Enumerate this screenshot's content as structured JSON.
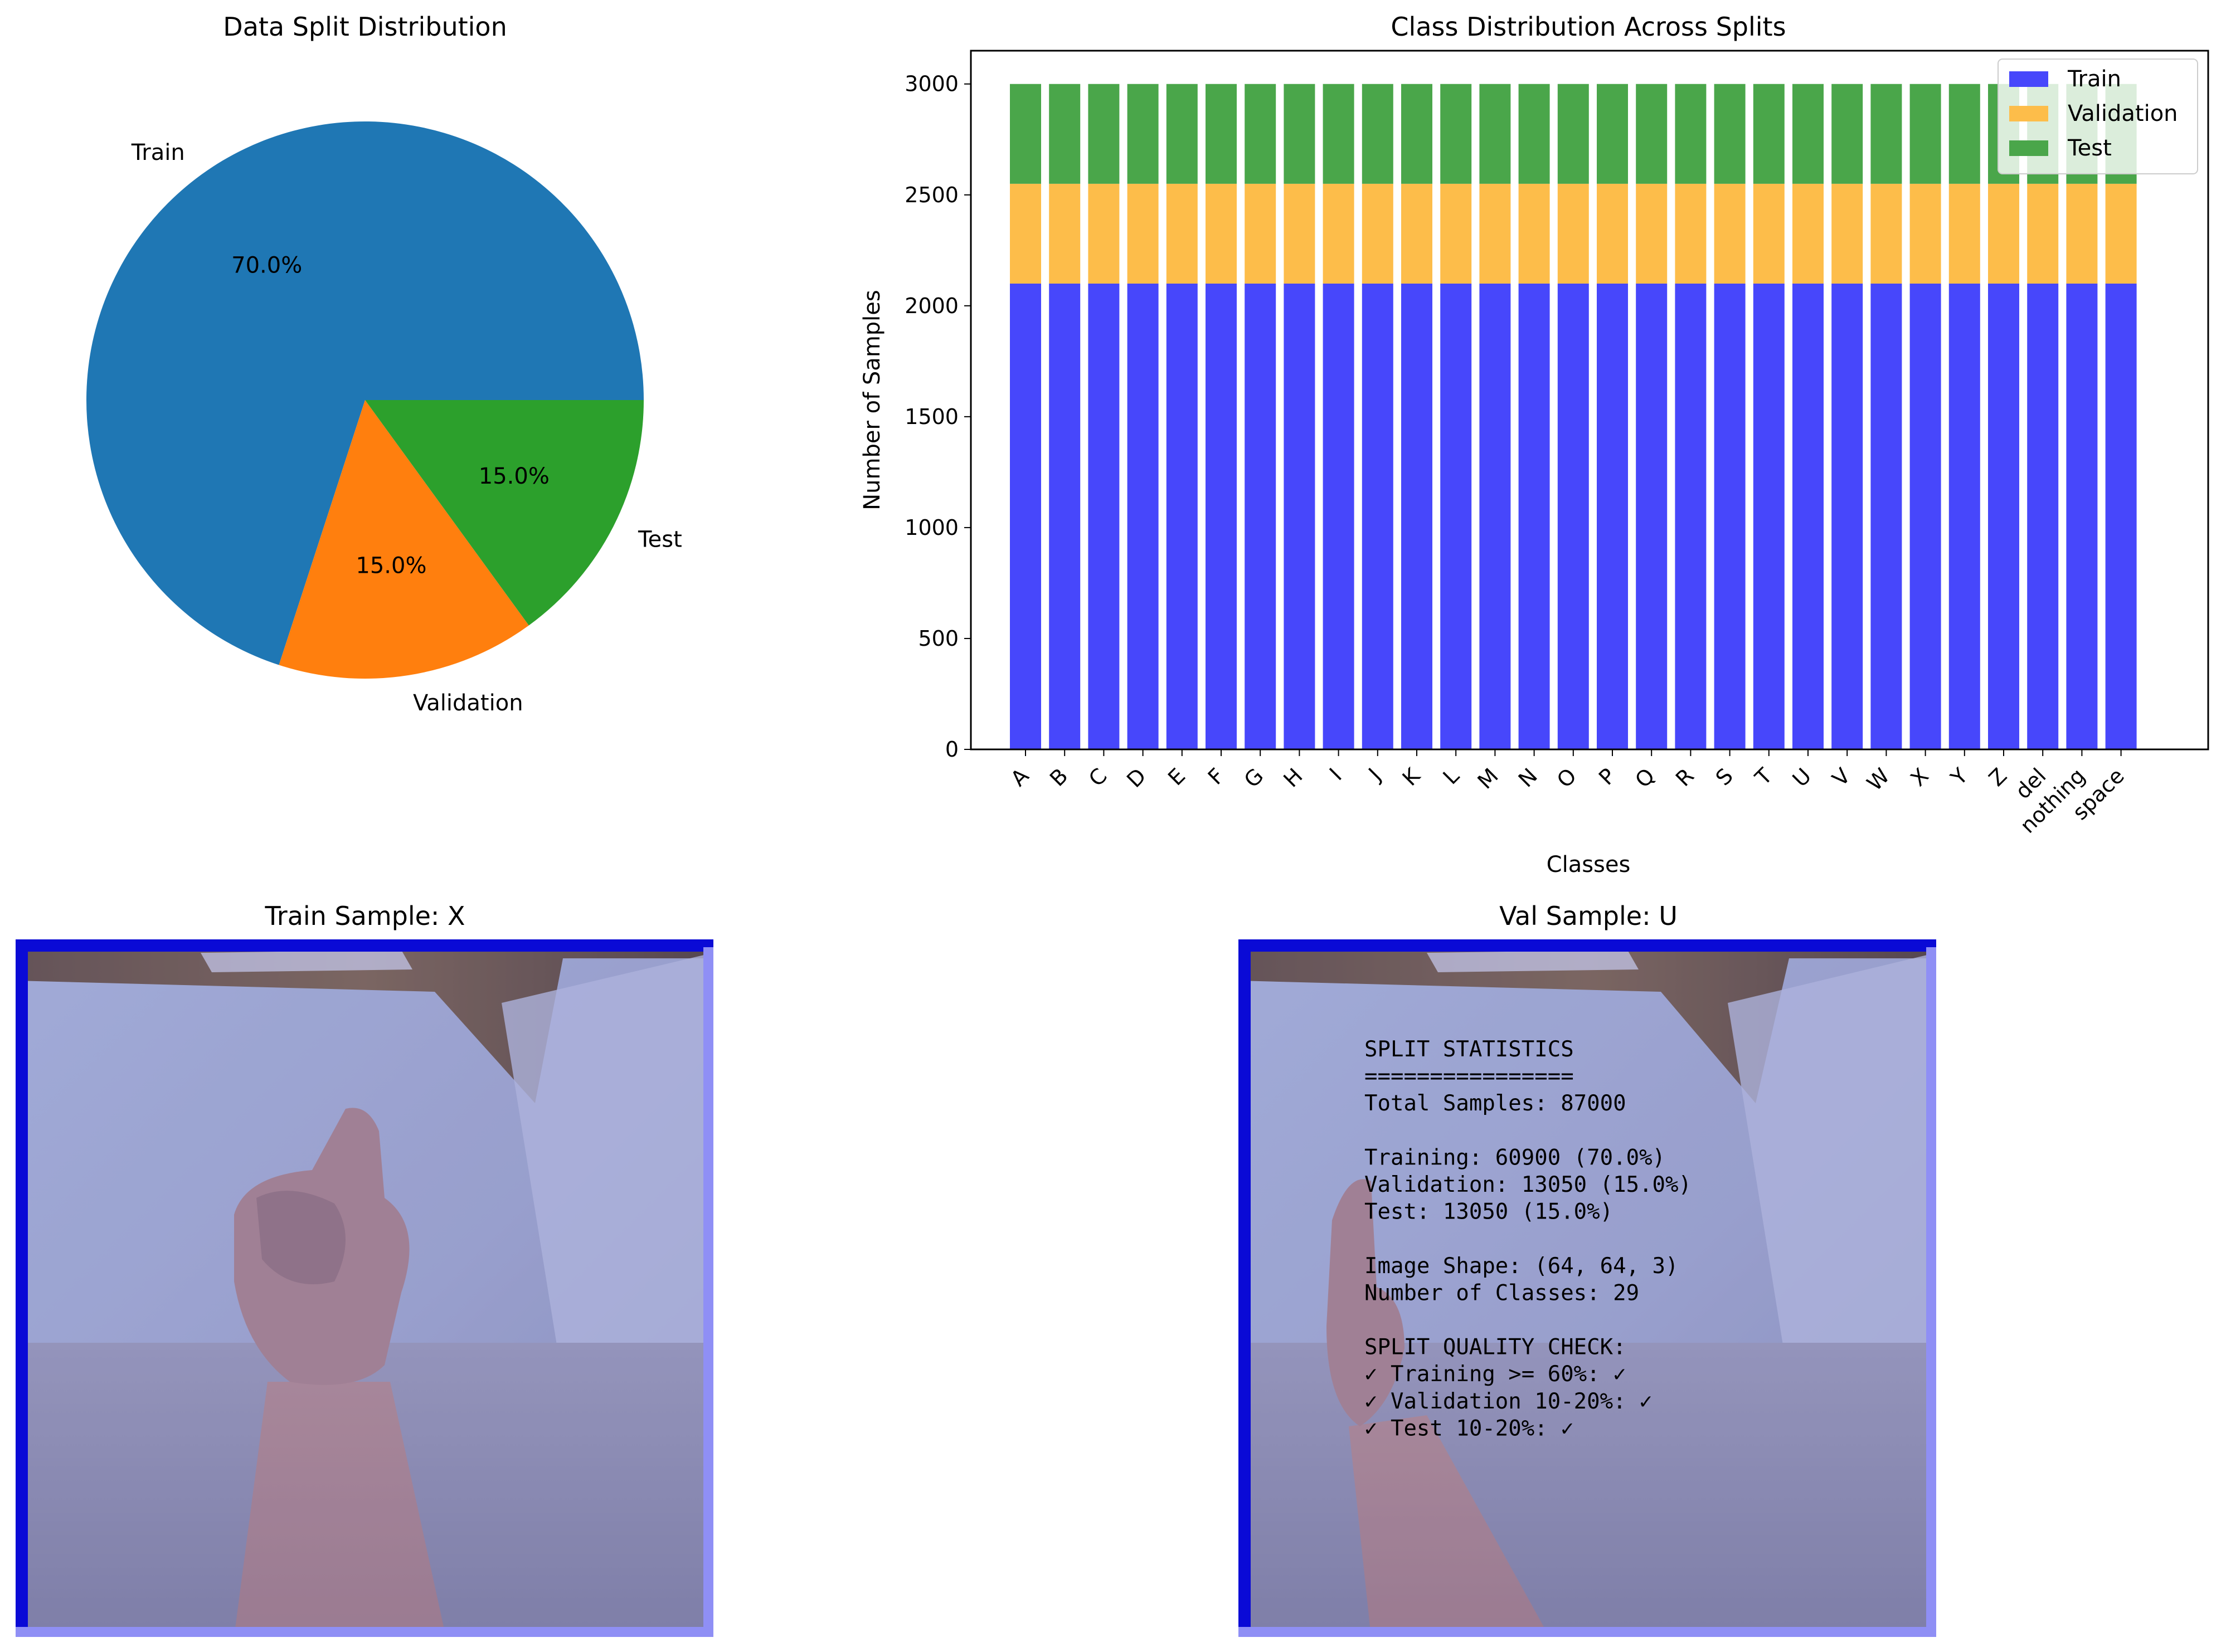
{
  "colors": {
    "pie_train": "#1f77b4",
    "pie_validation": "#ff7f0e",
    "pie_test": "#2ca02c",
    "bar_train": "#4747fb",
    "bar_validation": "#fdbd4a",
    "bar_test": "#4aa64a"
  },
  "chart_data": [
    {
      "type": "pie",
      "title": "Data Split Distribution",
      "labels": [
        "Train",
        "Validation",
        "Test"
      ],
      "values": [
        70.0,
        15.0,
        15.0
      ],
      "pct_labels": [
        "70.0%",
        "15.0%",
        "15.0%"
      ]
    },
    {
      "type": "bar",
      "stacked": true,
      "title": "Class Distribution Across Splits",
      "xlabel": "Classes",
      "ylabel": "Number of Samples",
      "ylim": [
        0,
        3150
      ],
      "yticks": [
        0,
        500,
        1000,
        1500,
        2000,
        2500,
        3000
      ],
      "categories": [
        "A",
        "B",
        "C",
        "D",
        "E",
        "F",
        "G",
        "H",
        "I",
        "J",
        "K",
        "L",
        "M",
        "N",
        "O",
        "P",
        "Q",
        "R",
        "S",
        "T",
        "U",
        "V",
        "W",
        "X",
        "Y",
        "Z",
        "del",
        "nothing",
        "space"
      ],
      "series": [
        {
          "name": "Train",
          "values": [
            2100,
            2100,
            2100,
            2100,
            2100,
            2100,
            2100,
            2100,
            2100,
            2100,
            2100,
            2100,
            2100,
            2100,
            2100,
            2100,
            2100,
            2100,
            2100,
            2100,
            2100,
            2100,
            2100,
            2100,
            2100,
            2100,
            2100,
            2100,
            2100
          ]
        },
        {
          "name": "Validation",
          "values": [
            450,
            450,
            450,
            450,
            450,
            450,
            450,
            450,
            450,
            450,
            450,
            450,
            450,
            450,
            450,
            450,
            450,
            450,
            450,
            450,
            450,
            450,
            450,
            450,
            450,
            450,
            450,
            450,
            450
          ]
        },
        {
          "name": "Test",
          "values": [
            450,
            450,
            450,
            450,
            450,
            450,
            450,
            450,
            450,
            450,
            450,
            450,
            450,
            450,
            450,
            450,
            450,
            450,
            450,
            450,
            450,
            450,
            450,
            450,
            450,
            450,
            450,
            450,
            450
          ]
        }
      ],
      "legend_position": "top-right"
    }
  ],
  "samples": {
    "train_title": "Train Sample: X",
    "val_title": "Val Sample: U"
  },
  "stats_lines": [
    "SPLIT STATISTICS",
    "================",
    "Total Samples: 87000",
    "",
    "Training: 60900 (70.0%)",
    "Validation: 13050 (15.0%)",
    "Test: 13050 (15.0%)",
    "",
    "Image Shape: (64, 64, 3)",
    "Number of Classes: 29",
    "",
    "SPLIT QUALITY CHECK:",
    "✓ Training >= 60%: ✓",
    "✓ Validation 10-20%: ✓",
    "✓ Test 10-20%: ✓"
  ]
}
